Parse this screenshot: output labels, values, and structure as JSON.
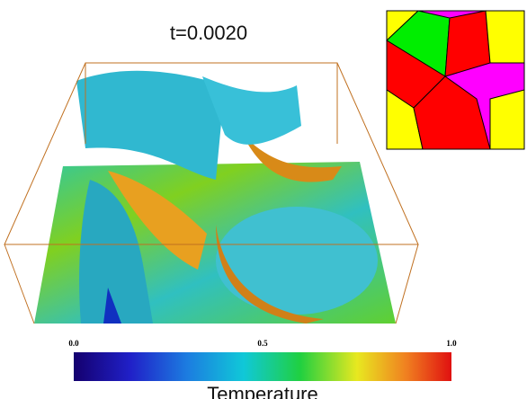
{
  "title": "t=0.0020",
  "colorbar": {
    "label": "Temperature",
    "lim": [
      0,
      1
    ],
    "ticks": [
      {
        "value": 0,
        "label": "0.0"
      },
      0.5,
      {
        "value": 1,
        "label": "1.0"
      }
    ]
  }
}
